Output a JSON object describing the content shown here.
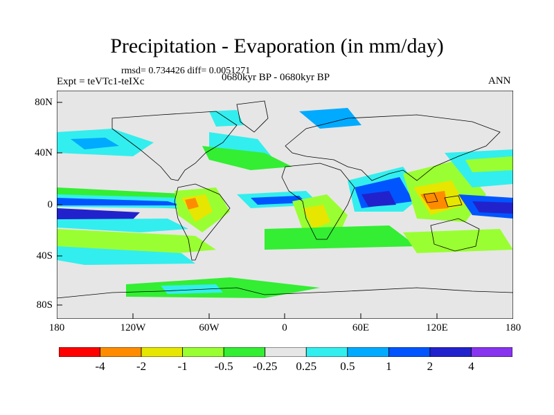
{
  "title": "Precipitation - Evaporation (in mm/day)",
  "stats": "rmsd= 0.734426 diff= 0.0051271",
  "expt": "Expt = teVTc1-teIXc",
  "period": "0680kyr BP - 0680kyr BP",
  "season": "ANN",
  "map": {
    "background": "#e6e6e6",
    "lat_ticks": [
      "80N",
      "40N",
      "0",
      "40S",
      "80S"
    ],
    "lon_ticks": [
      "180",
      "120W",
      "60W",
      "0",
      "60E",
      "120E",
      "180"
    ]
  },
  "colorbar": {
    "colors": [
      "#ff0000",
      "#ff8c00",
      "#e6e600",
      "#99ff33",
      "#33ee33",
      "#e6e6e6",
      "#33eeee",
      "#00aaff",
      "#0055ff",
      "#2222cc",
      "#8833ee"
    ],
    "labels": [
      "-4",
      "-2",
      "-1",
      "-0.5",
      "-0.25",
      "0.25",
      "0.5",
      "1",
      "2",
      "4"
    ]
  }
}
